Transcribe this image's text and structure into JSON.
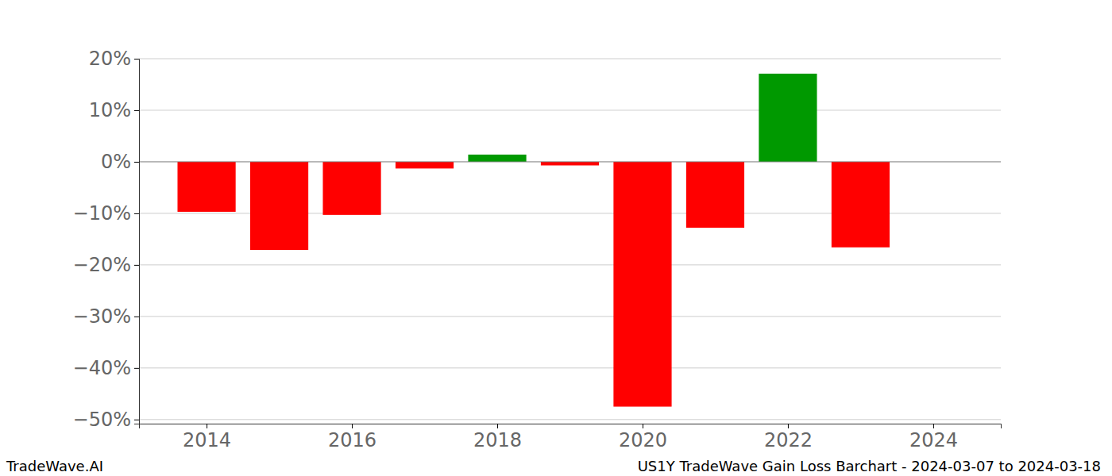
{
  "chart_data": {
    "type": "bar",
    "title": "US1Y TradeWave Gain Loss Barchart - 2024-03-07 to 2024-03-18",
    "annotations": [
      "TradeWave.AI"
    ],
    "x": [
      2014,
      2015,
      2016,
      2017,
      2018,
      2019,
      2020,
      2021,
      2022,
      2023
    ],
    "values": [
      -9.7,
      -17.1,
      -10.3,
      -1.3,
      1.4,
      -0.7,
      -47.5,
      -12.8,
      17.1,
      -16.6
    ],
    "colors": [
      "#ff0000",
      "#ff0000",
      "#ff0000",
      "#ff0000",
      "#009900",
      "#ff0000",
      "#ff0000",
      "#ff0000",
      "#009900",
      "#ff0000"
    ],
    "xlim": [
      2013.07,
      2024.93
    ],
    "xticks": [
      2014,
      2016,
      2018,
      2020,
      2022,
      2024
    ],
    "ylim": [
      -50.8,
      20
    ],
    "yticks": [
      {
        "value": 20,
        "label": "20%"
      },
      {
        "value": 10,
        "label": "10%"
      },
      {
        "value": 0,
        "label": "0%"
      },
      {
        "value": -10,
        "label": "−10%"
      },
      {
        "value": -20,
        "label": "−20%"
      },
      {
        "value": -30,
        "label": "−30%"
      },
      {
        "value": -40,
        "label": "−40%"
      },
      {
        "value": -50,
        "label": "−50%"
      }
    ],
    "grid": true
  }
}
